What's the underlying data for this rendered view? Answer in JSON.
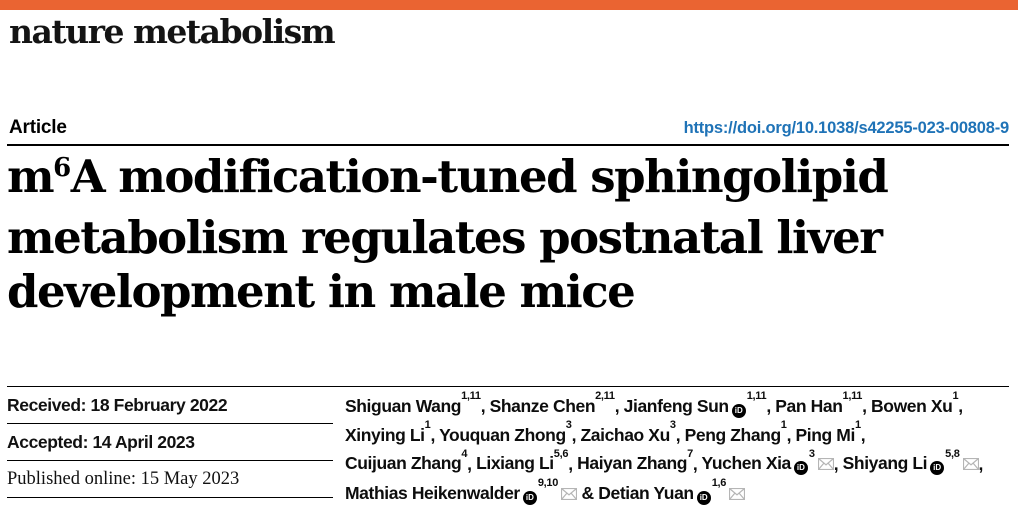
{
  "colors": {
    "accent_bar": "#EA6432",
    "link": "#1F73B7",
    "orcid_icon": "#000000",
    "envelope_icon": "#B5B5B5",
    "text": "#000000"
  },
  "masthead": {
    "journal": "nature metabolism"
  },
  "article_bar": {
    "label": "Article",
    "doi": "https://doi.org/10.1038/s42255-023-00808-9"
  },
  "title": {
    "line1_prefix": "m",
    "line1_sup": "6",
    "line1_rest": "A modification-tuned sphingolipid",
    "line2": "metabolism regulates postnatal liver",
    "line3": "development in male mice"
  },
  "dates": [
    {
      "text": "Received: 18 February 2022"
    },
    {
      "text": "Accepted: 14 April 2023"
    },
    {
      "text": "Published online: 15 May 2023"
    }
  ],
  "icons": {
    "orcid": {
      "name": "orcid-id-icon",
      "glyph": "iD"
    },
    "email": {
      "name": "envelope-icon",
      "glyph": "envelope"
    }
  },
  "authors": {
    "lines": [
      [
        {
          "name": "Shiguan Wang",
          "sup": "1,11",
          "sep": ", "
        },
        {
          "name": "Shanze Chen",
          "sup": "2,11",
          "sep": ", "
        },
        {
          "name": "Jianfeng Sun",
          "orcid": true,
          "sup": "1,11",
          "sep": ", "
        },
        {
          "name": "Pan Han",
          "sup": "1,11",
          "sep": ", "
        },
        {
          "name": "Bowen Xu",
          "sup": "1",
          "sep": ","
        }
      ],
      [
        {
          "name": "Xinying Li",
          "sup": "1",
          "sep": ", "
        },
        {
          "name": "Youquan Zhong",
          "sup": "3",
          "sep": ", "
        },
        {
          "name": "Zaichao Xu",
          "sup": "3",
          "sep": ", "
        },
        {
          "name": "Peng Zhang",
          "sup": "1",
          "sep": ", "
        },
        {
          "name": "Ping Mi",
          "sup": "1",
          "sep": ","
        }
      ],
      [
        {
          "name": "Cuijuan Zhang",
          "sup": "4",
          "sep": ", "
        },
        {
          "name": "Lixiang Li",
          "sup": "5,6",
          "sep": ", "
        },
        {
          "name": "Haiyan Zhang",
          "sup": "7",
          "sep": ", "
        },
        {
          "name": "Yuchen Xia",
          "orcid": true,
          "sup": "3",
          "mail": true,
          "sep": ", "
        },
        {
          "name": "Shiyang Li",
          "orcid": true,
          "sup": "5,8",
          "mail": true,
          "sep": ","
        }
      ],
      [
        {
          "name": "Mathias Heikenwalder",
          "orcid": true,
          "sup": "9,10",
          "mail": true,
          "sep": " & "
        },
        {
          "name": "Detian Yuan",
          "orcid": true,
          "sup": "1,6",
          "mail": true,
          "sep": ""
        }
      ]
    ]
  }
}
